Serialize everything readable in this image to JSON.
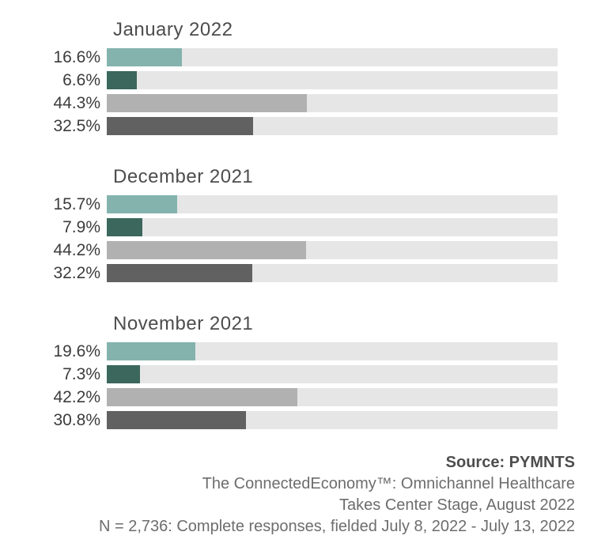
{
  "chart_data": {
    "type": "bar",
    "orientation": "horizontal",
    "xlim": [
      0,
      100
    ],
    "value_suffix": "%",
    "grid": false,
    "legend": "none",
    "track_color": "#e6e6e6",
    "bar_colors": [
      "#84b3ad",
      "#3c675c",
      "#b1b1b1",
      "#616161"
    ],
    "groups": [
      {
        "title": "January 2022",
        "values": [
          16.6,
          6.6,
          44.3,
          32.5
        ],
        "labels": [
          "16.6%",
          "6.6%",
          "44.3%",
          "32.5%"
        ]
      },
      {
        "title": "December 2021",
        "values": [
          15.7,
          7.9,
          44.2,
          32.2
        ],
        "labels": [
          "15.7%",
          "7.9%",
          "44.2%",
          "32.2%"
        ]
      },
      {
        "title": "November 2021",
        "values": [
          19.6,
          7.3,
          42.2,
          30.8
        ],
        "labels": [
          "19.6%",
          "7.3%",
          "42.2%",
          "30.8%"
        ]
      }
    ]
  },
  "footer": {
    "source_label": "Source: PYMNTS",
    "line2": "The ConnectedEconomy™: Omnichannel Healthcare",
    "line3": "Takes Center Stage, August 2022",
    "line4": "N = 2,736: Complete responses, fielded July 8, 2022 - July 13, 2022"
  }
}
